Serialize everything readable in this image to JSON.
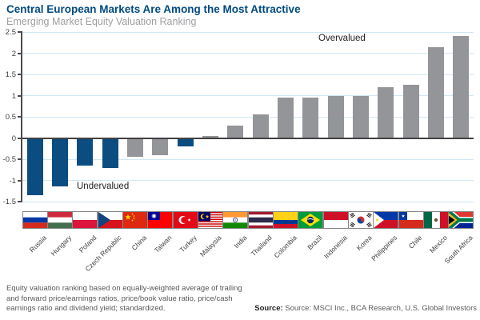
{
  "header": {
    "title": "Central European Markets Are Among the Most Attractive",
    "subtitle": "Emerging Market Equity Valuation Ranking"
  },
  "chart_data": {
    "type": "bar",
    "title": "Central European Markets Are Among the Most Attractive",
    "subtitle": "Emerging Market Equity Valuation Ranking",
    "xlabel": "",
    "ylabel": "",
    "ylim": [
      -1.5,
      2.5
    ],
    "ytick_step": 0.5,
    "grid": true,
    "legend": "none",
    "categories": [
      "Russia",
      "Hungary",
      "Poland",
      "Czech Republic",
      "China",
      "Taiwan",
      "Turkey",
      "Malaysia",
      "India",
      "Thailand",
      "Colombia",
      "Brazil",
      "Indonesia",
      "Korea",
      "Philippines",
      "Chile",
      "Mexico",
      "South Africa"
    ],
    "values": [
      -1.35,
      -1.15,
      -0.65,
      -0.7,
      -0.45,
      -0.4,
      -0.2,
      0.05,
      0.3,
      0.55,
      0.95,
      0.95,
      1.0,
      1.0,
      1.2,
      1.25,
      2.15,
      2.4
    ],
    "highlighted_categories": [
      "Russia",
      "Hungary",
      "Poland",
      "Czech Republic",
      "Turkey"
    ],
    "flag_icons": [
      "flag-russia",
      "flag-hungary",
      "flag-poland",
      "flag-czech-republic",
      "flag-china",
      "flag-taiwan",
      "flag-turkey",
      "flag-malaysia",
      "flag-india",
      "flag-thailand",
      "flag-colombia",
      "flag-brazil",
      "flag-indonesia",
      "flag-korea",
      "flag-philippines",
      "flag-chile",
      "flag-mexico",
      "flag-south-africa"
    ],
    "annotations": [
      {
        "text": "Overvalued"
      },
      {
        "text": "Undervalued"
      }
    ],
    "colors": {
      "title": "#004a80",
      "subtitle": "#9c9ea1",
      "bar_highlight": "#0c4d81",
      "bar_normal": "#939598",
      "gridline": "#cfe6f2",
      "zero_line": "#414042",
      "axis": "#4d4d4f",
      "tick_text": "#414042",
      "annotation": "#231f20",
      "x_label": "#414042",
      "footnote": "#58595b"
    }
  },
  "footer": {
    "note_lines": [
      "Equity valuation ranking based on equally-weighted average of trailing",
      "and forward price/earnings ratios, price/book value ratio, price/cash",
      "earnings ratio and dividend yield; standardized."
    ],
    "source_label": "Source:",
    "source_text": "Source: MSCI Inc., BCA Research, U.S. Global Investors"
  }
}
